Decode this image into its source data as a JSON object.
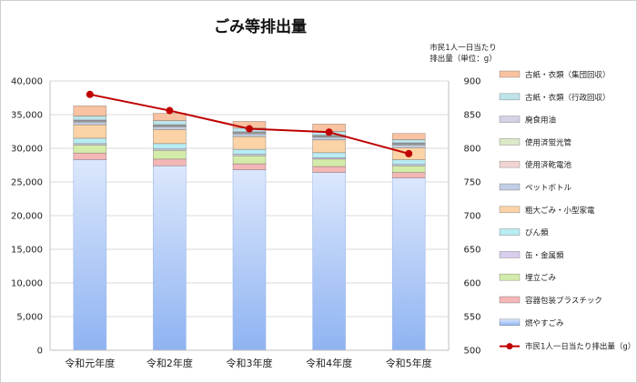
{
  "chart_data": {
    "type": "bar",
    "stacked": true,
    "title": "ごみ等排出量",
    "categories": [
      "令和元年度",
      "令和2年度",
      "令和3年度",
      "令和4年度",
      "令和5年度"
    ],
    "y_left": {
      "min": 0,
      "max": 40000,
      "ticks": [
        "0",
        "5,000",
        "10,000",
        "15,000",
        "20,000",
        "25,000",
        "30,000",
        "35,000",
        "40,000"
      ]
    },
    "y_right": {
      "label_line1": "市民1人一日当たり",
      "label_line2": "排出量（単位：g）",
      "min": 500,
      "max": 900,
      "ticks": [
        "500",
        "550",
        "600",
        "650",
        "700",
        "750",
        "800",
        "850",
        "900"
      ]
    },
    "series": [
      {
        "name": "燃やすごみ",
        "color": "#a9c4f5",
        "values": [
          28300,
          27400,
          26800,
          26400,
          25600
        ]
      },
      {
        "name": "容器包装プラスチック",
        "color": "#f4b6b6",
        "values": [
          1000,
          1000,
          900,
          900,
          800
        ]
      },
      {
        "name": "埋立ごみ",
        "color": "#d4ecaa",
        "values": [
          1200,
          1300,
          1200,
          1100,
          1000
        ]
      },
      {
        "name": "缶・金属類",
        "color": "#d9cdee",
        "values": [
          200,
          200,
          200,
          200,
          200
        ]
      },
      {
        "name": "びん類",
        "color": "#b9ecf3",
        "values": [
          800,
          800,
          750,
          750,
          700
        ]
      },
      {
        "name": "粗大ごみ・小型家電",
        "color": "#fbd3a6",
        "values": [
          2000,
          2100,
          1900,
          1900,
          1800
        ]
      },
      {
        "name": "ペットボトル",
        "color": "#c2cee3",
        "values": [
          400,
          400,
          400,
          400,
          400
        ]
      },
      {
        "name": "使用済乾電池",
        "color": "#f2d3d3",
        "values": [
          100,
          100,
          100,
          100,
          100
        ]
      },
      {
        "name": "使用済蛍光管",
        "color": "#dbe9c8",
        "values": [
          100,
          100,
          100,
          100,
          100
        ]
      },
      {
        "name": "廃食用油",
        "color": "#d7d1e8",
        "values": [
          100,
          100,
          100,
          100,
          100
        ]
      },
      {
        "name": "古紙・衣類（行政回収）",
        "color": "#bde4ea",
        "values": [
          600,
          600,
          550,
          550,
          500
        ]
      },
      {
        "name": "古紙・衣類（集団回収）",
        "color": "#f9c2a0",
        "values": [
          1500,
          1100,
          1000,
          1100,
          900
        ]
      }
    ],
    "line_series": {
      "name": "市民1人一日当たり排出量（g）",
      "color": "#c00000",
      "values": [
        880,
        856,
        829,
        824,
        792
      ]
    }
  }
}
